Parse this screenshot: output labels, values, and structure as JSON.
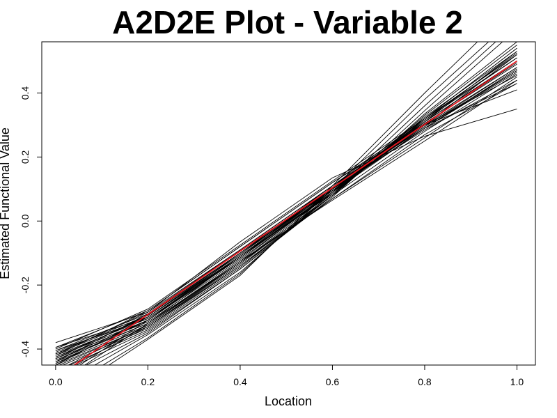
{
  "chart_data": {
    "type": "line",
    "title": "A2D2E Plot - Variable 2",
    "xlabel": "Location",
    "ylabel": "Estimated Functional Value",
    "xlim": [
      -0.03,
      1.04
    ],
    "ylim": [
      -0.45,
      0.56
    ],
    "xticks": [
      "0.0",
      "0.2",
      "0.4",
      "0.6",
      "0.8",
      "1.0"
    ],
    "yticks": [
      "-0.4",
      "-0.2",
      "0.0",
      "0.2",
      "0.4"
    ],
    "grid": false,
    "legend": "none",
    "colors": {
      "curves": "#000000",
      "mean": "#e8141c"
    },
    "x": [
      0.0,
      0.2,
      0.4,
      0.6,
      0.8,
      1.0
    ],
    "series": [
      {
        "values": [
          -0.38,
          -0.285,
          -0.065,
          0.135,
          0.265,
          0.35
        ]
      },
      {
        "values": [
          -0.395,
          -0.28,
          -0.08,
          0.12,
          0.3,
          0.41
        ]
      },
      {
        "values": [
          -0.405,
          -0.29,
          -0.09,
          0.11,
          0.29,
          0.43
        ]
      },
      {
        "values": [
          -0.41,
          -0.295,
          -0.1,
          0.1,
          0.285,
          0.44
        ]
      },
      {
        "values": [
          -0.415,
          -0.3,
          -0.105,
          0.105,
          0.3,
          0.455
        ]
      },
      {
        "values": [
          -0.42,
          -0.305,
          -0.11,
          0.1,
          0.295,
          0.47
        ]
      },
      {
        "values": [
          -0.425,
          -0.31,
          -0.115,
          0.095,
          0.3,
          0.48
        ]
      },
      {
        "values": [
          -0.43,
          -0.315,
          -0.12,
          0.09,
          0.305,
          0.49
        ]
      },
      {
        "values": [
          -0.435,
          -0.31,
          -0.115,
          0.1,
          0.31,
          0.5
        ]
      },
      {
        "values": [
          -0.44,
          -0.32,
          -0.125,
          0.095,
          0.315,
          0.51
        ]
      },
      {
        "values": [
          -0.445,
          -0.325,
          -0.13,
          0.09,
          0.32,
          0.52
        ]
      },
      {
        "values": [
          -0.45,
          -0.33,
          -0.135,
          0.085,
          0.325,
          0.53
        ]
      },
      {
        "values": [
          -0.46,
          -0.335,
          -0.14,
          0.08,
          0.32,
          0.54
        ]
      },
      {
        "values": [
          -0.47,
          -0.34,
          -0.145,
          0.08,
          0.33,
          0.55
        ]
      },
      {
        "values": [
          -0.48,
          -0.345,
          -0.15,
          0.075,
          0.335,
          0.56
        ]
      },
      {
        "values": [
          -0.5,
          -0.35,
          -0.15,
          0.08,
          0.345,
          0.6
        ]
      },
      {
        "values": [
          -0.52,
          -0.355,
          -0.16,
          0.09,
          0.36,
          0.62
        ]
      },
      {
        "values": [
          -0.54,
          -0.365,
          -0.165,
          0.1,
          0.38,
          0.64
        ]
      },
      {
        "values": [
          -0.56,
          -0.37,
          -0.17,
          0.11,
          0.4,
          0.68
        ]
      },
      {
        "values": [
          -0.48,
          -0.33,
          -0.13,
          0.07,
          0.26,
          0.45
        ]
      },
      {
        "values": [
          -0.47,
          -0.325,
          -0.125,
          0.065,
          0.25,
          0.44
        ]
      },
      {
        "values": [
          -0.45,
          -0.3,
          -0.1,
          0.095,
          0.29,
          0.47
        ]
      },
      {
        "values": [
          -0.44,
          -0.29,
          -0.095,
          0.1,
          0.295,
          0.48
        ]
      },
      {
        "values": [
          -0.42,
          -0.28,
          -0.08,
          0.12,
          0.31,
          0.5
        ]
      },
      {
        "values": [
          -0.4,
          -0.275,
          -0.075,
          0.125,
          0.32,
          0.51
        ]
      },
      {
        "values": [
          -0.415,
          -0.285,
          -0.09,
          0.11,
          0.305,
          0.495
        ]
      },
      {
        "values": [
          -0.425,
          -0.3,
          -0.105,
          0.105,
          0.31,
          0.5
        ]
      },
      {
        "values": [
          -0.435,
          -0.32,
          -0.13,
          0.08,
          0.28,
          0.46
        ]
      },
      {
        "values": [
          -0.455,
          -0.33,
          -0.14,
          0.07,
          0.27,
          0.43
        ]
      },
      {
        "values": [
          -0.405,
          -0.305,
          -0.115,
          0.09,
          0.3,
          0.52
        ]
      },
      {
        "values": [
          -0.395,
          -0.3,
          -0.11,
          0.085,
          0.31,
          0.53
        ]
      },
      {
        "values": [
          -0.5,
          -0.31,
          -0.1,
          0.11,
          0.32,
          0.54
        ]
      },
      {
        "values": [
          -0.51,
          -0.32,
          -0.11,
          0.105,
          0.315,
          0.525
        ]
      },
      {
        "values": [
          -0.43,
          -0.295,
          -0.1,
          0.095,
          0.29,
          0.475
        ]
      },
      {
        "values": [
          -0.445,
          -0.31,
          -0.11,
          0.09,
          0.29,
          0.465
        ]
      }
    ],
    "mean": {
      "values": [
        -0.49,
        -0.292,
        -0.094,
        0.104,
        0.302,
        0.5
      ]
    }
  }
}
